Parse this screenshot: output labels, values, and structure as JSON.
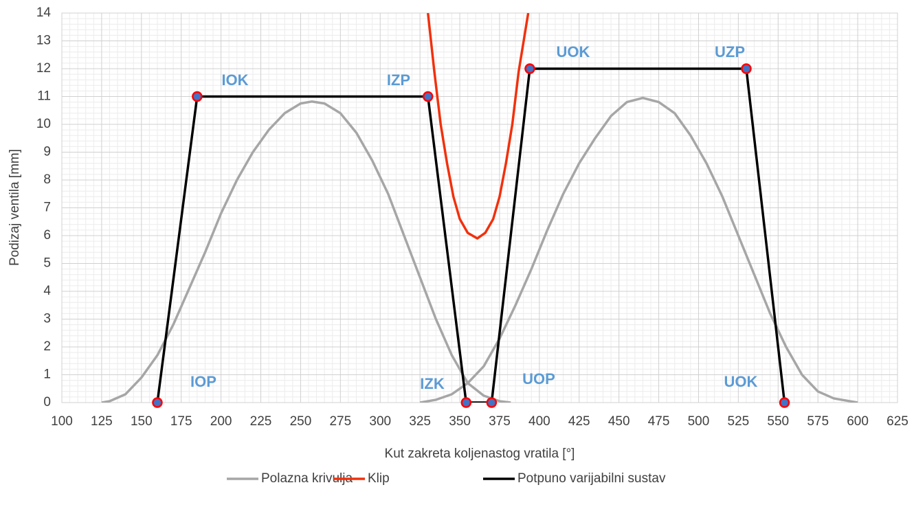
{
  "chart_data": {
    "type": "line",
    "x_label": "Kut zakreta koljenastog vratila [°]",
    "y_label": "Podizaj ventila [mm]",
    "xlim": [
      100,
      625
    ],
    "xticks": [
      100,
      125,
      150,
      175,
      200,
      225,
      250,
      275,
      300,
      325,
      350,
      375,
      400,
      425,
      450,
      475,
      500,
      525,
      550,
      575,
      600,
      625
    ],
    "ylim": [
      0,
      14
    ],
    "yticks": [
      0,
      1,
      2,
      3,
      4,
      5,
      6,
      7,
      8,
      9,
      10,
      11,
      12,
      13,
      14
    ],
    "grid": true,
    "minor_grid": true,
    "legend": "bottom",
    "series": [
      {
        "name": "Polazna krivulja",
        "color": "#a6a6a6",
        "x": [
          125,
          130,
          140,
          150,
          160,
          170,
          180,
          190,
          200,
          210,
          220,
          230,
          240,
          250,
          257,
          265,
          275,
          285,
          295,
          305,
          315,
          325,
          335,
          345,
          355,
          365,
          375,
          382,
          null,
          325,
          335,
          345,
          355,
          365,
          375,
          385,
          395,
          405,
          415,
          425,
          435,
          445,
          455,
          465,
          475,
          485,
          495,
          505,
          515,
          525,
          535,
          545,
          555,
          565,
          575,
          585,
          600
        ],
        "values": [
          0,
          0.05,
          0.3,
          0.9,
          1.7,
          2.8,
          4.1,
          5.4,
          6.8,
          8.0,
          9.0,
          9.8,
          10.4,
          10.75,
          10.82,
          10.75,
          10.4,
          9.7,
          8.7,
          7.5,
          6.0,
          4.5,
          3.0,
          1.7,
          0.7,
          0.25,
          0.05,
          0,
          null,
          0,
          0.1,
          0.3,
          0.7,
          1.3,
          2.3,
          3.5,
          4.8,
          6.2,
          7.5,
          8.6,
          9.5,
          10.3,
          10.8,
          10.95,
          10.8,
          10.4,
          9.6,
          8.6,
          7.4,
          6.0,
          4.6,
          3.2,
          2.0,
          1.0,
          0.4,
          0.15,
          0
        ]
      },
      {
        "name": "Klip",
        "color": "#f2300c",
        "x": [
          330,
          334,
          338,
          342,
          346,
          350,
          355,
          361,
          366,
          371,
          375,
          379,
          383,
          387,
          393
        ],
        "values": [
          14,
          11.9,
          10,
          8.6,
          7.4,
          6.6,
          6.1,
          5.9,
          6.1,
          6.6,
          7.4,
          8.6,
          10,
          11.9,
          14
        ]
      },
      {
        "name": "Potpuno varijabilni sustav",
        "color": "#000000",
        "markers": true,
        "marker_fill": "#4472c4",
        "marker_edge": "#ff0000",
        "x": [
          160,
          185,
          330,
          354,
          370,
          394,
          530,
          554
        ],
        "values": [
          0,
          11,
          11,
          0,
          0,
          12,
          12,
          0
        ]
      }
    ],
    "annotations": [
      "IOP",
      "IOK",
      "IZP",
      "IZK",
      "UOP",
      "UOK",
      "UZP",
      "UOK"
    ],
    "annotation_color": "#5b9bd5"
  }
}
